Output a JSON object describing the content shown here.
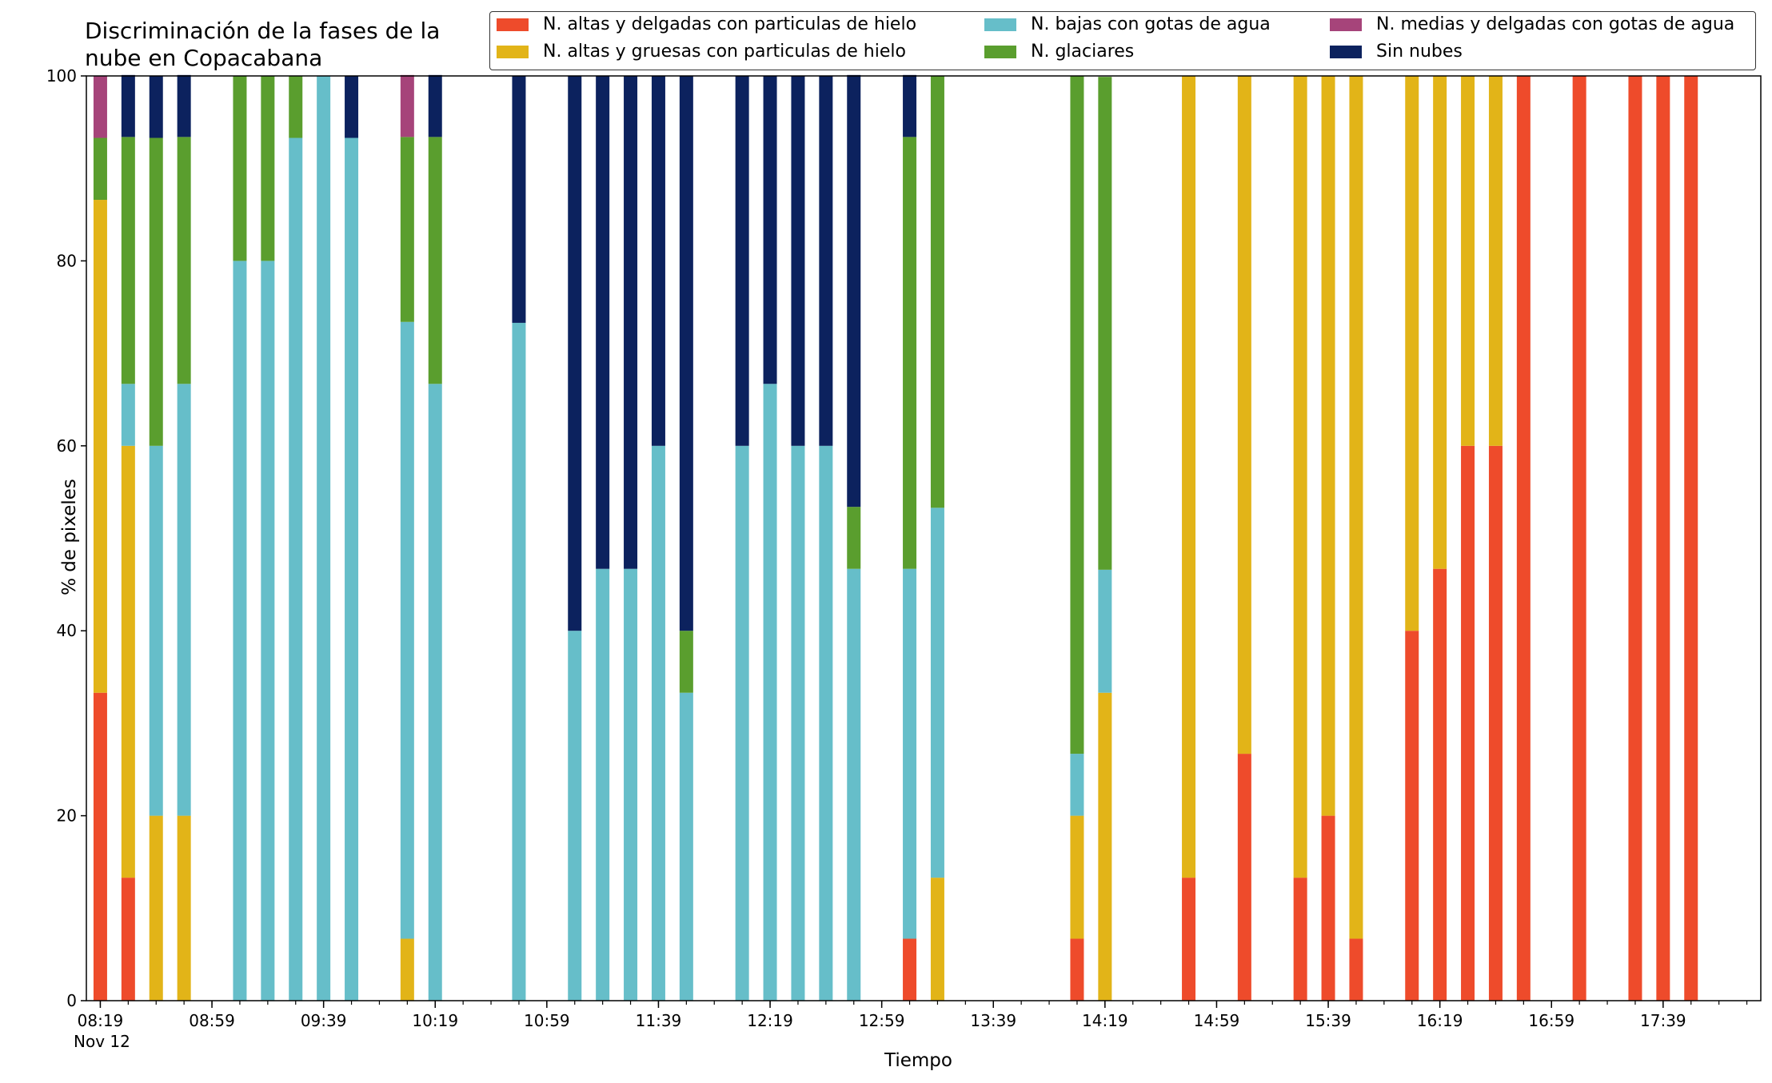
{
  "chart_data": {
    "type": "bar",
    "stacked": true,
    "title": "Discriminación de la fases de la nube en Copacabana",
    "xlabel": "Tiempo",
    "ylabel": "% de pixeles",
    "ylim": [
      0,
      100
    ],
    "yticks": [
      0,
      20,
      40,
      60,
      80,
      100
    ],
    "x_range": [
      "08:14",
      "18:14"
    ],
    "x_major_ticks": [
      "08:19",
      "08:59",
      "09:39",
      "10:19",
      "10:59",
      "11:39",
      "12:19",
      "12:59",
      "13:39",
      "14:19",
      "14:59",
      "15:39",
      "16:19",
      "16:59",
      "17:39"
    ],
    "x_first_tick_sublabel": "Nov 12",
    "legend_position": "top-right",
    "series": [
      {
        "name": "N. altas y delgadas con particulas de hielo",
        "color": "#ee4b2b"
      },
      {
        "name": "N. altas y gruesas con particulas de hielo",
        "color": "#e2b418"
      },
      {
        "name": "N. bajas con gotas de agua",
        "color": "#66bec9"
      },
      {
        "name": "N. glaciares",
        "color": "#5a9e2e"
      },
      {
        "name": "N. medias y delgadas con gotas de agua",
        "color": "#a6447a"
      },
      {
        "name": "Sin nubes",
        "color": "#0c225e"
      }
    ],
    "bars": [
      {
        "time": "08:19",
        "values": [
          33.3,
          53.3,
          0,
          6.7,
          6.7,
          0
        ]
      },
      {
        "time": "08:29",
        "values": [
          13.3,
          46.7,
          6.7,
          26.7,
          0,
          6.7
        ]
      },
      {
        "time": "08:39",
        "values": [
          0,
          20,
          40,
          33.3,
          0,
          6.7
        ]
      },
      {
        "time": "08:49",
        "values": [
          0,
          20,
          46.7,
          26.7,
          0,
          6.7
        ]
      },
      {
        "time": "09:09",
        "values": [
          0,
          0,
          80,
          20,
          0,
          0
        ]
      },
      {
        "time": "09:19",
        "values": [
          0,
          0,
          80,
          20,
          0,
          0
        ]
      },
      {
        "time": "09:29",
        "values": [
          0,
          0,
          93.3,
          6.7,
          0,
          0
        ]
      },
      {
        "time": "09:39",
        "values": [
          0,
          0,
          100,
          0,
          0,
          0
        ]
      },
      {
        "time": "09:49",
        "values": [
          0,
          0,
          93.3,
          0,
          0,
          6.7
        ]
      },
      {
        "time": "10:09",
        "values": [
          0,
          6.7,
          66.7,
          20,
          6.7,
          0
        ]
      },
      {
        "time": "10:19",
        "values": [
          0,
          0,
          66.7,
          26.7,
          0,
          6.7
        ]
      },
      {
        "time": "10:49",
        "values": [
          0,
          0,
          73.3,
          0,
          0,
          26.7
        ]
      },
      {
        "time": "11:09",
        "values": [
          0,
          0,
          40,
          0,
          0,
          60
        ]
      },
      {
        "time": "11:19",
        "values": [
          0,
          0,
          46.7,
          0,
          0,
          53.3
        ]
      },
      {
        "time": "11:29",
        "values": [
          0,
          0,
          46.7,
          0,
          0,
          53.3
        ]
      },
      {
        "time": "11:39",
        "values": [
          0,
          0,
          60,
          0,
          0,
          40
        ]
      },
      {
        "time": "11:49",
        "values": [
          0,
          0,
          33.3,
          6.7,
          0,
          60
        ]
      },
      {
        "time": "12:09",
        "values": [
          0,
          0,
          60,
          0,
          0,
          40
        ]
      },
      {
        "time": "12:19",
        "values": [
          0,
          0,
          66.7,
          0,
          0,
          33.3
        ]
      },
      {
        "time": "12:29",
        "values": [
          0,
          0,
          60,
          0,
          0,
          40
        ]
      },
      {
        "time": "12:39",
        "values": [
          0,
          0,
          60,
          0,
          0,
          40
        ]
      },
      {
        "time": "12:49",
        "values": [
          0,
          0,
          46.7,
          6.7,
          0,
          46.7
        ]
      },
      {
        "time": "13:09",
        "values": [
          6.7,
          0,
          40,
          46.7,
          0,
          6.7
        ]
      },
      {
        "time": "13:19",
        "values": [
          0,
          13.3,
          40,
          46.7,
          0,
          0
        ]
      },
      {
        "time": "14:09",
        "values": [
          6.7,
          13.3,
          6.7,
          73.3,
          0,
          0
        ]
      },
      {
        "time": "14:19",
        "values": [
          0,
          33.3,
          13.3,
          53.3,
          0,
          0
        ]
      },
      {
        "time": "14:49",
        "values": [
          13.3,
          86.7,
          0,
          0,
          0,
          0
        ]
      },
      {
        "time": "15:09",
        "values": [
          26.7,
          73.3,
          0,
          0,
          0,
          0
        ]
      },
      {
        "time": "15:29",
        "values": [
          13.3,
          86.7,
          0,
          0,
          0,
          0
        ]
      },
      {
        "time": "15:39",
        "values": [
          20,
          80,
          0,
          0,
          0,
          0
        ]
      },
      {
        "time": "15:49",
        "values": [
          6.7,
          93.3,
          0,
          0,
          0,
          0
        ]
      },
      {
        "time": "16:09",
        "values": [
          40,
          60,
          0,
          0,
          0,
          0
        ]
      },
      {
        "time": "16:19",
        "values": [
          46.7,
          53.3,
          0,
          0,
          0,
          0
        ]
      },
      {
        "time": "16:29",
        "values": [
          60,
          40,
          0,
          0,
          0,
          0
        ]
      },
      {
        "time": "16:39",
        "values": [
          60,
          40,
          0,
          0,
          0,
          0
        ]
      },
      {
        "time": "16:49",
        "values": [
          100,
          0,
          0,
          0,
          0,
          0
        ]
      },
      {
        "time": "17:09",
        "values": [
          100,
          0,
          0,
          0,
          0,
          0
        ]
      },
      {
        "time": "17:29",
        "values": [
          100,
          0,
          0,
          0,
          0,
          0
        ]
      },
      {
        "time": "17:39",
        "values": [
          100,
          0,
          0,
          0,
          0,
          0
        ]
      },
      {
        "time": "17:49",
        "values": [
          100,
          0,
          0,
          0,
          0,
          0
        ]
      }
    ]
  }
}
